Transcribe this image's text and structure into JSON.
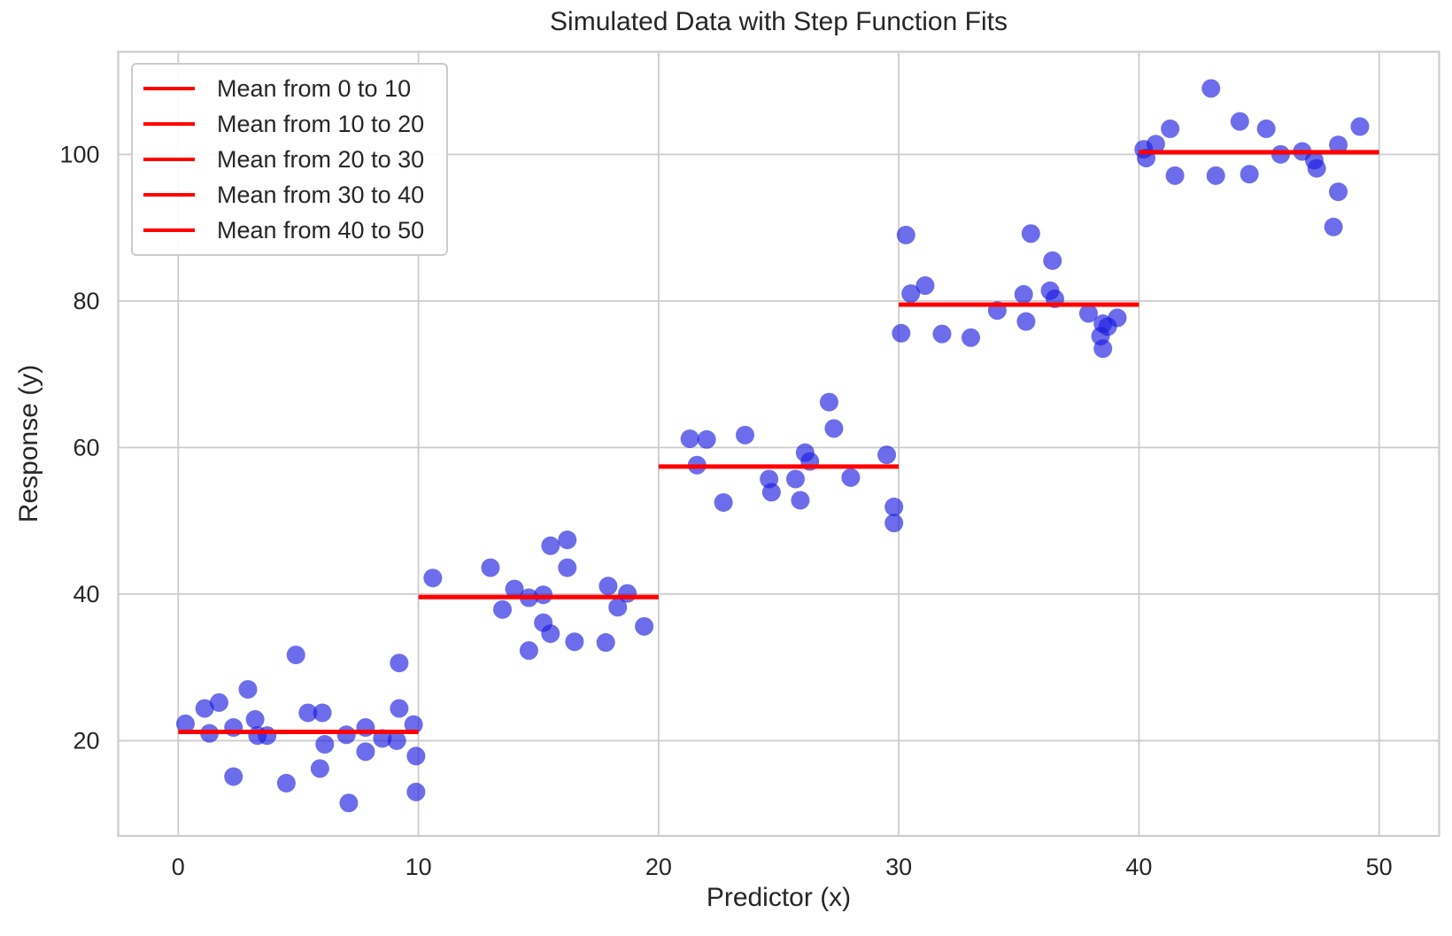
{
  "chart_data": {
    "type": "scatter",
    "title": "Simulated Data with Step Function Fits",
    "xlabel": "Predictor (x)",
    "ylabel": "Response (y)",
    "xlim": [
      -2.5,
      52.5
    ],
    "ylim": [
      7,
      114
    ],
    "x_ticks": [
      0,
      10,
      20,
      30,
      40,
      50
    ],
    "y_ticks": [
      20,
      40,
      60,
      80,
      100
    ],
    "grid": true,
    "legend_position": "upper left",
    "colors": {
      "point_fill": "#1a1ae0",
      "point_opacity": 0.64,
      "mean_line": "#ff0000",
      "grid_line": "#cccccc",
      "spine": "#cccccc",
      "text": "#262626"
    },
    "series": [
      {
        "name": "simulated data points",
        "points": [
          [
            0.3,
            22.3
          ],
          [
            1.1,
            24.4
          ],
          [
            1.3,
            21.0
          ],
          [
            1.7,
            25.2
          ],
          [
            2.3,
            21.8
          ],
          [
            2.3,
            15.1
          ],
          [
            2.9,
            27.0
          ],
          [
            3.2,
            22.9
          ],
          [
            3.3,
            20.7
          ],
          [
            3.7,
            20.7
          ],
          [
            4.5,
            14.2
          ],
          [
            4.9,
            31.7
          ],
          [
            5.4,
            23.8
          ],
          [
            5.9,
            16.2
          ],
          [
            6.0,
            23.8
          ],
          [
            6.1,
            19.5
          ],
          [
            7.0,
            20.8
          ],
          [
            7.1,
            11.5
          ],
          [
            7.8,
            21.8
          ],
          [
            7.8,
            18.5
          ],
          [
            8.5,
            20.3
          ],
          [
            9.1,
            20.0
          ],
          [
            9.2,
            30.6
          ],
          [
            9.2,
            24.4
          ],
          [
            9.8,
            22.2
          ],
          [
            9.9,
            17.9
          ],
          [
            9.9,
            13.0
          ],
          [
            10.6,
            42.2
          ],
          [
            13.0,
            43.6
          ],
          [
            13.5,
            37.9
          ],
          [
            14.0,
            40.7
          ],
          [
            14.6,
            39.5
          ],
          [
            14.6,
            32.3
          ],
          [
            15.2,
            39.9
          ],
          [
            15.2,
            36.1
          ],
          [
            15.5,
            46.6
          ],
          [
            15.5,
            34.6
          ],
          [
            16.2,
            47.4
          ],
          [
            16.2,
            43.6
          ],
          [
            16.5,
            33.5
          ],
          [
            17.8,
            33.4
          ],
          [
            17.9,
            41.1
          ],
          [
            18.3,
            38.2
          ],
          [
            18.7,
            40.1
          ],
          [
            19.4,
            35.6
          ],
          [
            21.3,
            61.2
          ],
          [
            21.6,
            57.6
          ],
          [
            22.0,
            61.1
          ],
          [
            22.7,
            52.5
          ],
          [
            23.6,
            61.7
          ],
          [
            24.6,
            55.7
          ],
          [
            24.7,
            53.9
          ],
          [
            25.7,
            55.7
          ],
          [
            25.9,
            52.8
          ],
          [
            26.1,
            59.3
          ],
          [
            26.3,
            58.1
          ],
          [
            27.1,
            66.2
          ],
          [
            27.3,
            62.6
          ],
          [
            28.0,
            55.9
          ],
          [
            29.5,
            59.0
          ],
          [
            29.8,
            51.9
          ],
          [
            29.8,
            49.7
          ],
          [
            30.1,
            75.6
          ],
          [
            30.3,
            89.0
          ],
          [
            30.5,
            81.0
          ],
          [
            31.1,
            82.1
          ],
          [
            31.8,
            75.5
          ],
          [
            33.0,
            75.0
          ],
          [
            34.1,
            78.7
          ],
          [
            35.2,
            80.9
          ],
          [
            35.3,
            77.2
          ],
          [
            35.5,
            89.2
          ],
          [
            36.3,
            81.4
          ],
          [
            36.4,
            85.5
          ],
          [
            36.5,
            80.3
          ],
          [
            37.9,
            78.3
          ],
          [
            38.4,
            75.2
          ],
          [
            38.5,
            76.9
          ],
          [
            38.7,
            76.5
          ],
          [
            38.5,
            73.5
          ],
          [
            39.1,
            77.7
          ],
          [
            40.2,
            100.7
          ],
          [
            40.3,
            99.5
          ],
          [
            40.7,
            101.4
          ],
          [
            41.3,
            103.5
          ],
          [
            41.5,
            97.1
          ],
          [
            43.0,
            109.0
          ],
          [
            43.2,
            97.1
          ],
          [
            44.2,
            104.5
          ],
          [
            44.6,
            97.3
          ],
          [
            45.3,
            103.5
          ],
          [
            45.9,
            100.0
          ],
          [
            46.8,
            100.4
          ],
          [
            47.3,
            99.2
          ],
          [
            47.4,
            98.1
          ],
          [
            48.1,
            90.1
          ],
          [
            48.3,
            101.3
          ],
          [
            48.3,
            94.9
          ],
          [
            49.2,
            103.8
          ]
        ]
      }
    ],
    "mean_lines": [
      {
        "label": "Mean from 0 to 10",
        "x_start": 0,
        "x_end": 10,
        "mean": 21.2
      },
      {
        "label": "Mean from 10 to 20",
        "x_start": 10,
        "x_end": 20,
        "mean": 39.6
      },
      {
        "label": "Mean from 20 to 30",
        "x_start": 20,
        "x_end": 30,
        "mean": 57.4
      },
      {
        "label": "Mean from 30 to 40",
        "x_start": 30,
        "x_end": 40,
        "mean": 79.5
      },
      {
        "label": "Mean from 40 to 50",
        "x_start": 40,
        "x_end": 50,
        "mean": 100.3
      }
    ]
  }
}
